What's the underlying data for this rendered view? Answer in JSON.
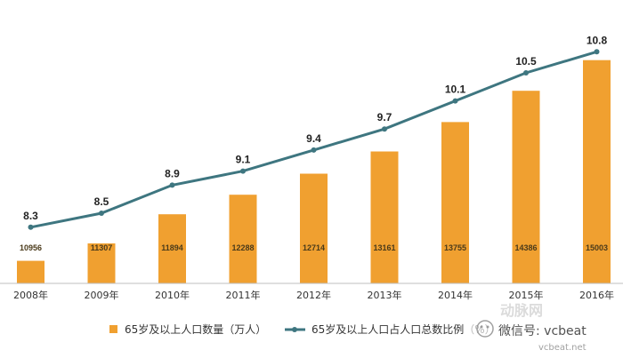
{
  "chart_data": {
    "type": "bar",
    "categories": [
      "2008年",
      "2009年",
      "2010年",
      "2011年",
      "2012年",
      "2013年",
      "2014年",
      "2015年",
      "2016年"
    ],
    "series": [
      {
        "name": "65岁及以上人口数量（万人）",
        "kind": "bar",
        "values": [
          10956,
          11307,
          11894,
          12288,
          12714,
          13161,
          13755,
          14386,
          15003
        ],
        "color": "#F0A030"
      },
      {
        "name": "65岁及以上人口占人口总数比例（%）",
        "kind": "line",
        "values": [
          8.3,
          8.5,
          8.9,
          9.1,
          9.4,
          9.7,
          10.1,
          10.5,
          10.8
        ],
        "color": "#3E7680"
      }
    ],
    "y_bar_range": [
      10500,
      15500
    ],
    "y_line_range": [
      7.5,
      11.5
    ],
    "grid": false,
    "legend_position": "bottom"
  },
  "watermark": {
    "site": "动脉网",
    "wechat": "微信号: vcbeat",
    "domain": "vcbeat.net"
  },
  "colors": {
    "bar": "#F0A030",
    "line": "#3E7680",
    "axis": "#BFBFBF"
  }
}
